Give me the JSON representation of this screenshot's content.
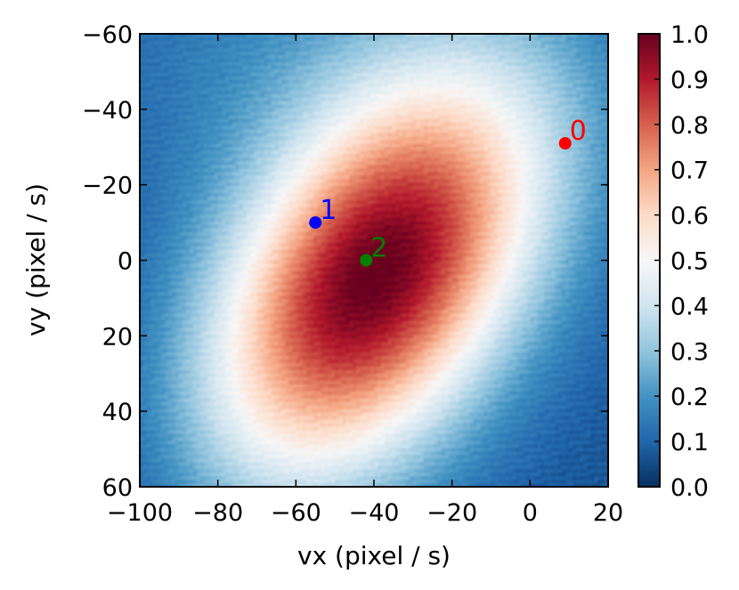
{
  "chart_data": {
    "type": "heatmap",
    "title": "",
    "xlabel": "vx (pixel / s)",
    "ylabel": "vy (pixel / s)",
    "xlim": [
      -100,
      20
    ],
    "ylim": [
      60,
      -60
    ],
    "x_ticks": [
      -100,
      -80,
      -60,
      -40,
      -20,
      0,
      20
    ],
    "x_tick_labels": [
      "−100",
      "−80",
      "−60",
      "−40",
      "−20",
      "0",
      "20"
    ],
    "y_ticks": [
      -60,
      -40,
      -20,
      0,
      20,
      40,
      60
    ],
    "y_tick_labels": [
      "−60",
      "−40",
      "−20",
      "0",
      "20",
      "40",
      "60"
    ],
    "colormap": "RdBu_r",
    "colorbar": {
      "range": [
        0.0,
        1.0
      ],
      "ticks": [
        0.0,
        0.1,
        0.2,
        0.3,
        0.4,
        0.5,
        0.6,
        0.7,
        0.8,
        0.9,
        1.0
      ],
      "tick_labels": [
        "0.0",
        "0.1",
        "0.2",
        "0.3",
        "0.4",
        "0.5",
        "0.6",
        "0.7",
        "0.8",
        "0.9",
        "1.0"
      ]
    },
    "points": [
      {
        "label": "0",
        "x": 9,
        "y": -31,
        "color": "#ff0000"
      },
      {
        "label": "1",
        "x": -55,
        "y": -10,
        "color": "#0000ff"
      },
      {
        "label": "2",
        "x": -42,
        "y": 0,
        "color": "#008000"
      }
    ]
  }
}
